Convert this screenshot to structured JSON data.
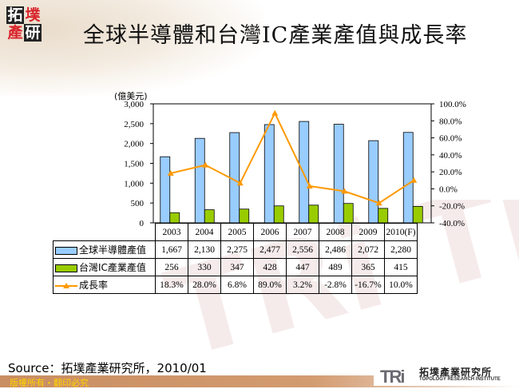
{
  "header": {
    "logo_chars": [
      "拓",
      "墣",
      "產",
      "研"
    ],
    "title": "全球半導體和台灣IC產業產值與成長率"
  },
  "chart_data": {
    "type": "bar",
    "title": "全球半導體和台灣IC產業產值與成長率",
    "unit_label": "(億美元)",
    "categories": [
      "2003",
      "2004",
      "2005",
      "2006",
      "2007",
      "2008",
      "2009",
      "2010(F)"
    ],
    "series": [
      {
        "name": "全球半導體產值",
        "type": "bar",
        "axis": "left",
        "color": "#99ccff",
        "values": [
          1667,
          2130,
          2275,
          2477,
          2556,
          2486,
          2072,
          2280
        ],
        "labels": [
          "1,667",
          "2,130",
          "2,275",
          "2,477",
          "2,556",
          "2,486",
          "2,072",
          "2,280"
        ]
      },
      {
        "name": "台灣IC產業產值",
        "type": "bar",
        "axis": "left",
        "color": "#99cc00",
        "values": [
          256,
          330,
          347,
          428,
          447,
          489,
          365,
          415
        ],
        "labels": [
          "256",
          "330",
          "347",
          "428",
          "447",
          "489",
          "365",
          "415"
        ]
      },
      {
        "name": "成長率",
        "type": "line",
        "axis": "right",
        "color": "#ff9900",
        "values": [
          18.3,
          28.0,
          6.8,
          89.0,
          3.2,
          -2.8,
          -16.7,
          10.0
        ],
        "labels": [
          "18.3%",
          "28.0%",
          "6.8%",
          "89.0%",
          "3.2%",
          "-2.8%",
          "-16.7%",
          "10.0%"
        ]
      }
    ],
    "left_axis": {
      "ylim": [
        0,
        3000
      ],
      "ticks": [
        "3,000",
        "2,500",
        "2,000",
        "1,500",
        "1,000",
        "500",
        "0"
      ]
    },
    "right_axis": {
      "ylim": [
        -40,
        100
      ],
      "ticks": [
        "100.0%",
        "80.0%",
        "60.0%",
        "40.0%",
        "20.0%",
        "0.0%",
        "-20.0%",
        "-40.0%"
      ]
    },
    "legend_position": "data-table",
    "grid": false
  },
  "footer": {
    "source": "Source：拓墣產業研究所，2010/01",
    "copyright": "版權所有・翻印必究",
    "org_mark": "TRi",
    "org_name_cn": "拓墣產業研究所",
    "org_name_en": "TOPOLOGY RESEARCH INSTITUTE"
  }
}
